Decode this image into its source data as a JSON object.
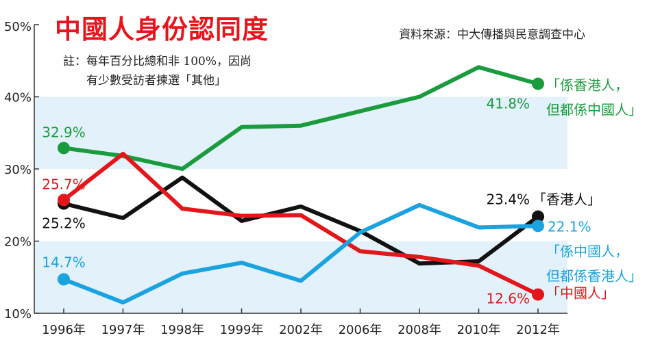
{
  "chart_data": {
    "type": "line",
    "title": "中國人身份認同度",
    "source": "資料來源：中大傳播與民意調查中心",
    "note_line1": "註：每年百分比總和非 100%，因尚",
    "note_line2": "有少數受訪者揀選「其他」",
    "categories": [
      "1996年",
      "1997年",
      "1998年",
      "1999年",
      "2002年",
      "2006年",
      "2008年",
      "2010年",
      "2012年"
    ],
    "y_ticks": [
      "10%",
      "20%",
      "30%",
      "40%",
      "50%"
    ],
    "ylim": [
      10,
      50
    ],
    "y_tick_values": [
      10,
      20,
      30,
      40,
      50
    ],
    "grid": false,
    "shaded_bands": [
      [
        10,
        20
      ],
      [
        30,
        40
      ]
    ],
    "series": [
      {
        "key": "green",
        "values": [
          32.9,
          31.8,
          30.0,
          35.8,
          36.0,
          38.0,
          40.0,
          44.1,
          41.8
        ],
        "start_label": "32.9%",
        "end_label": "41.8%",
        "legend_line1": "「係香港人，",
        "legend_line2": "但都係中國人」",
        "color": "#1a9c3e"
      },
      {
        "key": "black",
        "values": [
          25.2,
          23.2,
          28.8,
          22.8,
          24.8,
          21.4,
          16.9,
          17.2,
          23.4
        ],
        "start_label": "25.2%",
        "end_label": "23.4%",
        "legend_line1": "「香港人」",
        "legend_line2": "",
        "color": "#111111"
      },
      {
        "key": "red",
        "values": [
          25.7,
          32.1,
          24.5,
          23.5,
          23.6,
          18.6,
          17.8,
          16.6,
          12.6
        ],
        "start_label": "25.7%",
        "end_label": "12.6%",
        "legend_line1": "「中國人」",
        "legend_line2": "",
        "color": "#e3161b"
      },
      {
        "key": "blue",
        "values": [
          14.7,
          11.5,
          15.5,
          17.0,
          14.5,
          21.2,
          25.0,
          21.9,
          22.1
        ],
        "start_label": "14.7%",
        "end_label": "22.1%",
        "legend_line1": "「係中國人，",
        "legend_line2": "但都係香港人」",
        "color": "#1aa3e0"
      }
    ]
  }
}
